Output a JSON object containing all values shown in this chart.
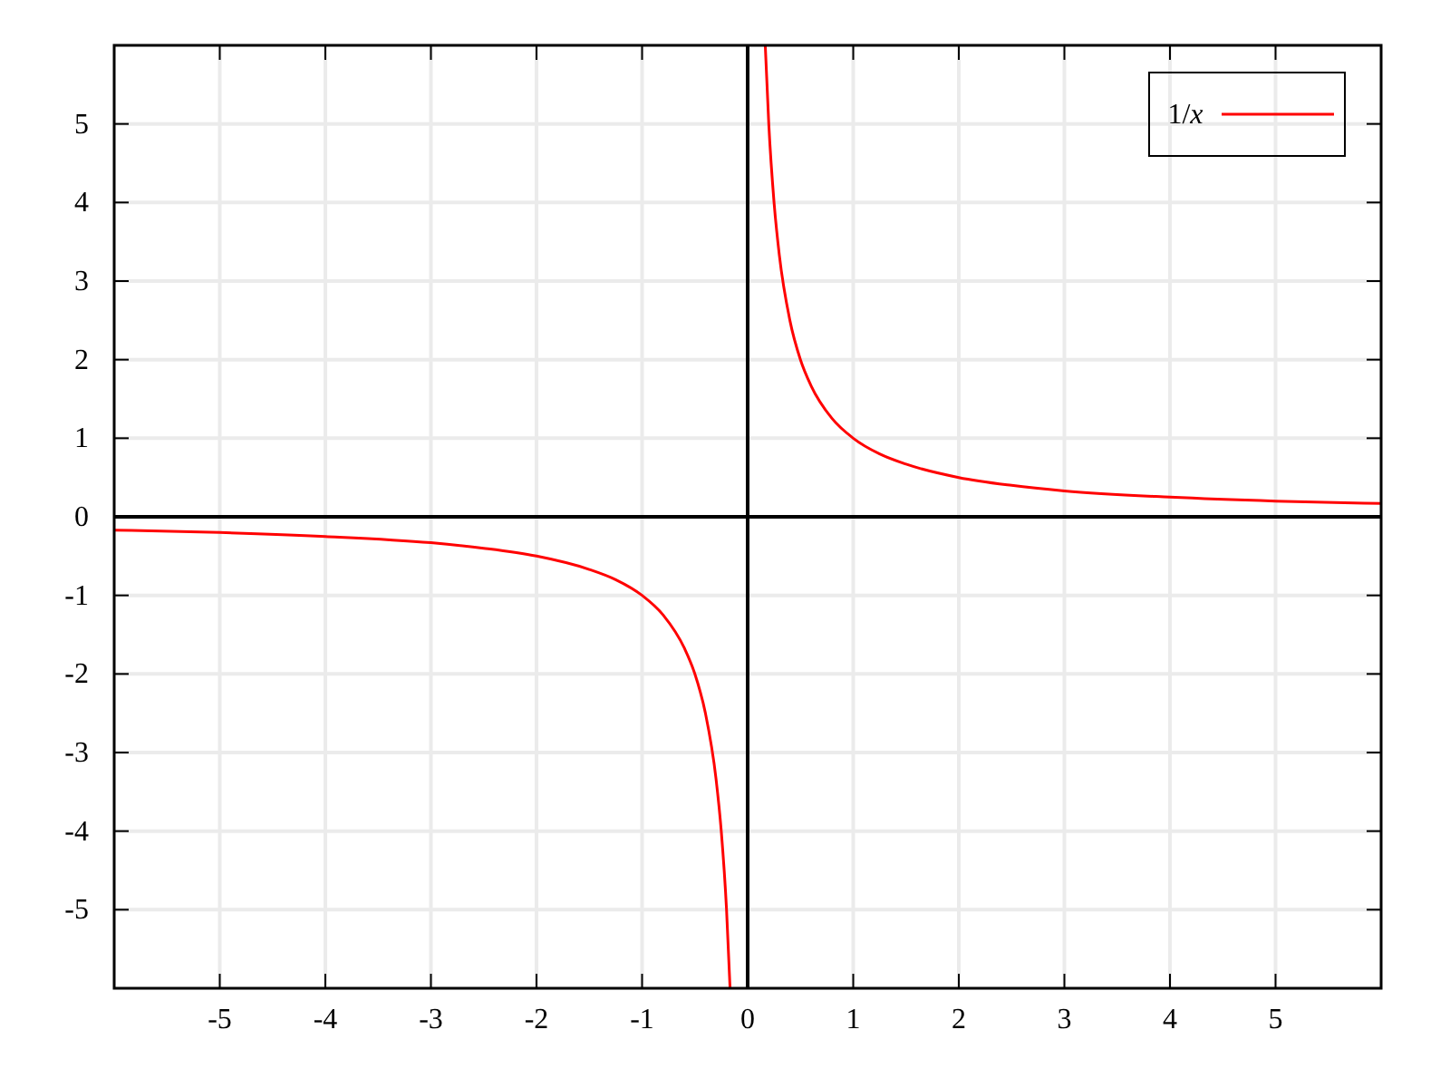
{
  "chart_data": {
    "type": "line",
    "x": [
      -6,
      -5,
      -4,
      -3,
      -2.5,
      -2,
      -1.5,
      -1.25,
      -1,
      -0.8,
      -0.6,
      -0.5,
      -0.4,
      -0.3,
      -0.25,
      -0.2,
      -0.1667,
      0,
      0.1667,
      0.2,
      0.25,
      0.3,
      0.4,
      0.5,
      0.6,
      0.8,
      1,
      1.25,
      1.5,
      2,
      2.5,
      3,
      4,
      5,
      6
    ],
    "series": [
      {
        "name": "1/x",
        "color": "#ff0000",
        "values": [
          -0.17,
          -0.2,
          -0.25,
          -0.33,
          -0.4,
          -0.5,
          -0.67,
          -0.8,
          -1,
          -1.25,
          -1.67,
          -2,
          -2.5,
          -3.33,
          -4,
          -5,
          -6,
          null,
          6,
          5,
          4,
          3.33,
          2.5,
          2,
          1.67,
          1.25,
          1,
          0.8,
          0.67,
          0.5,
          0.4,
          0.33,
          0.25,
          0.2,
          0.17
        ]
      }
    ],
    "xlim": [
      -6,
      6
    ],
    "ylim": [
      -6,
      6
    ],
    "xticks": [
      -5,
      -4,
      -3,
      -2,
      -1,
      0,
      1,
      2,
      3,
      4,
      5
    ],
    "yticks": [
      -5,
      -4,
      -3,
      -2,
      -1,
      0,
      1,
      2,
      3,
      4,
      5
    ],
    "grid": true,
    "legend": "top right",
    "marker": "none",
    "line_style": "solid"
  }
}
